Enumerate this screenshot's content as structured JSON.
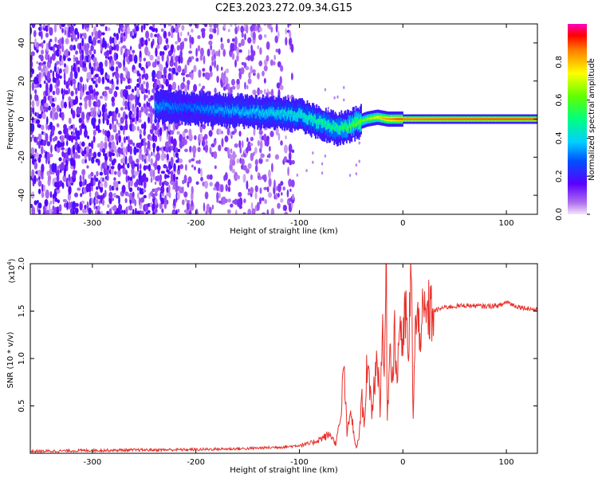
{
  "title": "C2E3.2023.272.09.34.G15",
  "chart_data": [
    {
      "type": "heatmap",
      "xlabel": "Height of straight line (km)",
      "ylabel": "Frequency (Hz)",
      "xlim": [
        -360,
        130
      ],
      "ylim": [
        -50,
        50
      ],
      "x_ticks": [
        -300,
        -200,
        -100,
        0,
        100
      ],
      "y_ticks": [
        -40,
        -20,
        0,
        20,
        40
      ],
      "colorbar": {
        "label": "Normalized spectral amplitude",
        "range": [
          0.0,
          1.0
        ],
        "ticks": [
          "0.0",
          "0.2",
          "0.4",
          "0.6",
          "0.8"
        ],
        "colormap": "rainbow"
      },
      "description_points": {
        "trace_x": [
          -240,
          -210,
          -180,
          -150,
          -120,
          -100,
          -80,
          -65,
          -55,
          -45,
          -35,
          -25,
          -15,
          -5,
          10,
          50,
          100,
          130
        ],
        "trace_y": [
          7,
          6,
          5,
          4,
          3,
          2,
          -2,
          -5,
          -4,
          -2,
          0,
          1,
          0,
          0,
          0,
          0,
          0,
          0
        ],
        "trace_amplitude": [
          0.35,
          0.3,
          0.35,
          0.38,
          0.42,
          0.45,
          0.5,
          0.5,
          0.55,
          0.6,
          0.65,
          0.75,
          0.85,
          0.9,
          0.9,
          0.92,
          0.93,
          0.93
        ]
      }
    },
    {
      "type": "line",
      "xlabel": "Height of straight line (km)",
      "ylabel": "SNR (10 * v/v)",
      "y_multiplier": "(x10",
      "y_multiplier_exp": "4",
      "y_multiplier_close": ")",
      "xlim": [
        -360,
        130
      ],
      "ylim": [
        0,
        2.0
      ],
      "x_ticks": [
        -300,
        -200,
        -100,
        0,
        100
      ],
      "y_ticks": [
        "0.5",
        "1.0",
        "1.5",
        "2.0"
      ],
      "color": "#e8302a",
      "series": [
        {
          "x": [
            -360,
            -300,
            -200,
            -150,
            -110,
            -90,
            -80,
            -70,
            -65,
            -60,
            -57,
            -54,
            -50,
            -47,
            -45,
            -42,
            -40,
            -37,
            -35,
            -30,
            -27,
            -25,
            -22,
            -20,
            -18,
            -16,
            -15,
            -12,
            -10,
            -8,
            -6,
            -3,
            0,
            3,
            5,
            8,
            10,
            12,
            15,
            20,
            25,
            30,
            40,
            60,
            80,
            95,
            100,
            110,
            120,
            130
          ],
          "y": [
            0.02,
            0.03,
            0.04,
            0.05,
            0.07,
            0.1,
            0.15,
            0.2,
            0.1,
            0.35,
            0.95,
            0.2,
            0.45,
            0.15,
            0.05,
            0.2,
            0.6,
            0.3,
            0.95,
            0.45,
            0.8,
            1.05,
            0.5,
            1.3,
            0.8,
            2.05,
            0.4,
            1.2,
            0.8,
            1.35,
            0.7,
            1.45,
            1.1,
            1.55,
            0.9,
            1.93,
            0.4,
            1.3,
            1.35,
            1.4,
            1.48,
            1.5,
            1.54,
            1.56,
            1.55,
            1.56,
            1.6,
            1.55,
            1.53,
            1.51
          ]
        }
      ]
    }
  ]
}
